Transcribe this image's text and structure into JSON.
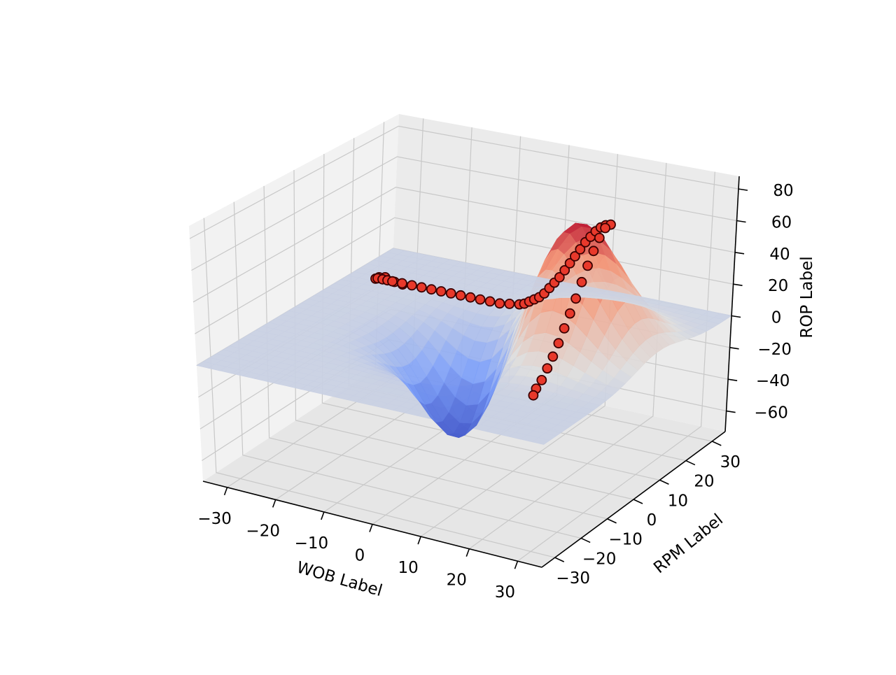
{
  "chart_data": {
    "type": "surface3d",
    "title": "",
    "xlabel": "WOB Label",
    "ylabel": "RPM Label",
    "zlabel": "ROP Label",
    "xlim": [
      -35,
      35
    ],
    "ylim": [
      -35,
      35
    ],
    "zlim": [
      -73,
      88
    ],
    "x_ticks": [
      -30,
      -20,
      -10,
      0,
      10,
      20,
      30
    ],
    "y_ticks": [
      -30,
      -20,
      -10,
      0,
      10,
      20,
      30
    ],
    "z_ticks": [
      -60,
      -40,
      -20,
      0,
      20,
      40,
      60,
      80
    ],
    "x_tick_labels": [
      "−30",
      "−20",
      "−10",
      "0",
      "10",
      "20",
      "30"
    ],
    "y_tick_labels": [
      "−30",
      "−20",
      "−10",
      "0",
      "10",
      "20",
      "30"
    ],
    "z_tick_labels": [
      "−60",
      "−40",
      "−20",
      "0",
      "20",
      "40",
      "60",
      "80"
    ],
    "grid": true,
    "colormap": "coolwarm",
    "surface": {
      "description_formula": "z = 80*exp(-((x-17)^2+(y-8)^2)/150) - 65*exp(-(x^2+y^2)/120)",
      "x_range": [
        -35,
        35
      ],
      "y_range": [
        -35,
        35
      ]
    },
    "series": [
      {
        "type": "scatter",
        "marker_color": "#e8392b",
        "marker_edge": "#3a0000",
        "points": [
          {
            "x": -30,
            "y": 30,
            "z": -15
          },
          {
            "x": -30,
            "y": 27,
            "z": -10
          },
          {
            "x": -28,
            "y": 20,
            "z": 2
          },
          {
            "x": -27,
            "y": 16,
            "z": 7
          },
          {
            "x": -26,
            "y": 13,
            "z": 10
          },
          {
            "x": -25,
            "y": 12,
            "z": 12
          },
          {
            "x": -24,
            "y": 12,
            "z": 12
          },
          {
            "x": -23,
            "y": 12,
            "z": 12
          },
          {
            "x": -22,
            "y": 12,
            "z": 12
          },
          {
            "x": -20,
            "y": 12,
            "z": 12
          },
          {
            "x": -18,
            "y": 12,
            "z": 12
          },
          {
            "x": -16,
            "y": 12,
            "z": 12
          },
          {
            "x": -14,
            "y": 12,
            "z": 12
          },
          {
            "x": -12,
            "y": 12,
            "z": 12
          },
          {
            "x": -10,
            "y": 12,
            "z": 12
          },
          {
            "x": -8,
            "y": 12,
            "z": 12
          },
          {
            "x": -6,
            "y": 12,
            "z": 12
          },
          {
            "x": -4,
            "y": 12,
            "z": 12
          },
          {
            "x": -2,
            "y": 12,
            "z": 12
          },
          {
            "x": 0,
            "y": 12,
            "z": 12
          },
          {
            "x": 2,
            "y": 12,
            "z": 13
          },
          {
            "x": 4,
            "y": 12,
            "z": 14
          },
          {
            "x": 5,
            "y": 12,
            "z": 15
          },
          {
            "x": 6,
            "y": 12,
            "z": 17
          },
          {
            "x": 7,
            "y": 12,
            "z": 19
          },
          {
            "x": 8,
            "y": 12,
            "z": 21
          },
          {
            "x": 9,
            "y": 12,
            "z": 24
          },
          {
            "x": 10,
            "y": 12,
            "z": 28
          },
          {
            "x": 11,
            "y": 12,
            "z": 32
          },
          {
            "x": 12,
            "y": 12,
            "z": 36
          },
          {
            "x": 13,
            "y": 12,
            "z": 41
          },
          {
            "x": 14,
            "y": 12,
            "z": 46
          },
          {
            "x": 15,
            "y": 12,
            "z": 51
          },
          {
            "x": 16,
            "y": 12,
            "z": 56
          },
          {
            "x": 17,
            "y": 12,
            "z": 61
          },
          {
            "x": 18,
            "y": 12,
            "z": 65
          },
          {
            "x": 19,
            "y": 12,
            "z": 69
          },
          {
            "x": 20,
            "y": 12,
            "z": 72
          },
          {
            "x": 21,
            "y": 12,
            "z": 74
          },
          {
            "x": 22,
            "y": 12,
            "z": 75
          },
          {
            "x": 22,
            "y": 10,
            "z": 75
          },
          {
            "x": 22,
            "y": 8,
            "z": 71
          },
          {
            "x": 22,
            "y": 6,
            "z": 65
          },
          {
            "x": 22,
            "y": 4,
            "z": 58
          },
          {
            "x": 22,
            "y": 2,
            "z": 50
          },
          {
            "x": 22,
            "y": 0,
            "z": 42
          },
          {
            "x": 22,
            "y": -2,
            "z": 35
          },
          {
            "x": 22,
            "y": -4,
            "z": 28
          },
          {
            "x": 22,
            "y": -6,
            "z": 21
          },
          {
            "x": 22,
            "y": -8,
            "z": 15
          },
          {
            "x": 22,
            "y": -10,
            "z": 10
          },
          {
            "x": 22,
            "y": -12,
            "z": 5
          },
          {
            "x": 22,
            "y": -14,
            "z": 2
          },
          {
            "x": 22,
            "y": -15,
            "z": -1
          }
        ]
      }
    ]
  }
}
